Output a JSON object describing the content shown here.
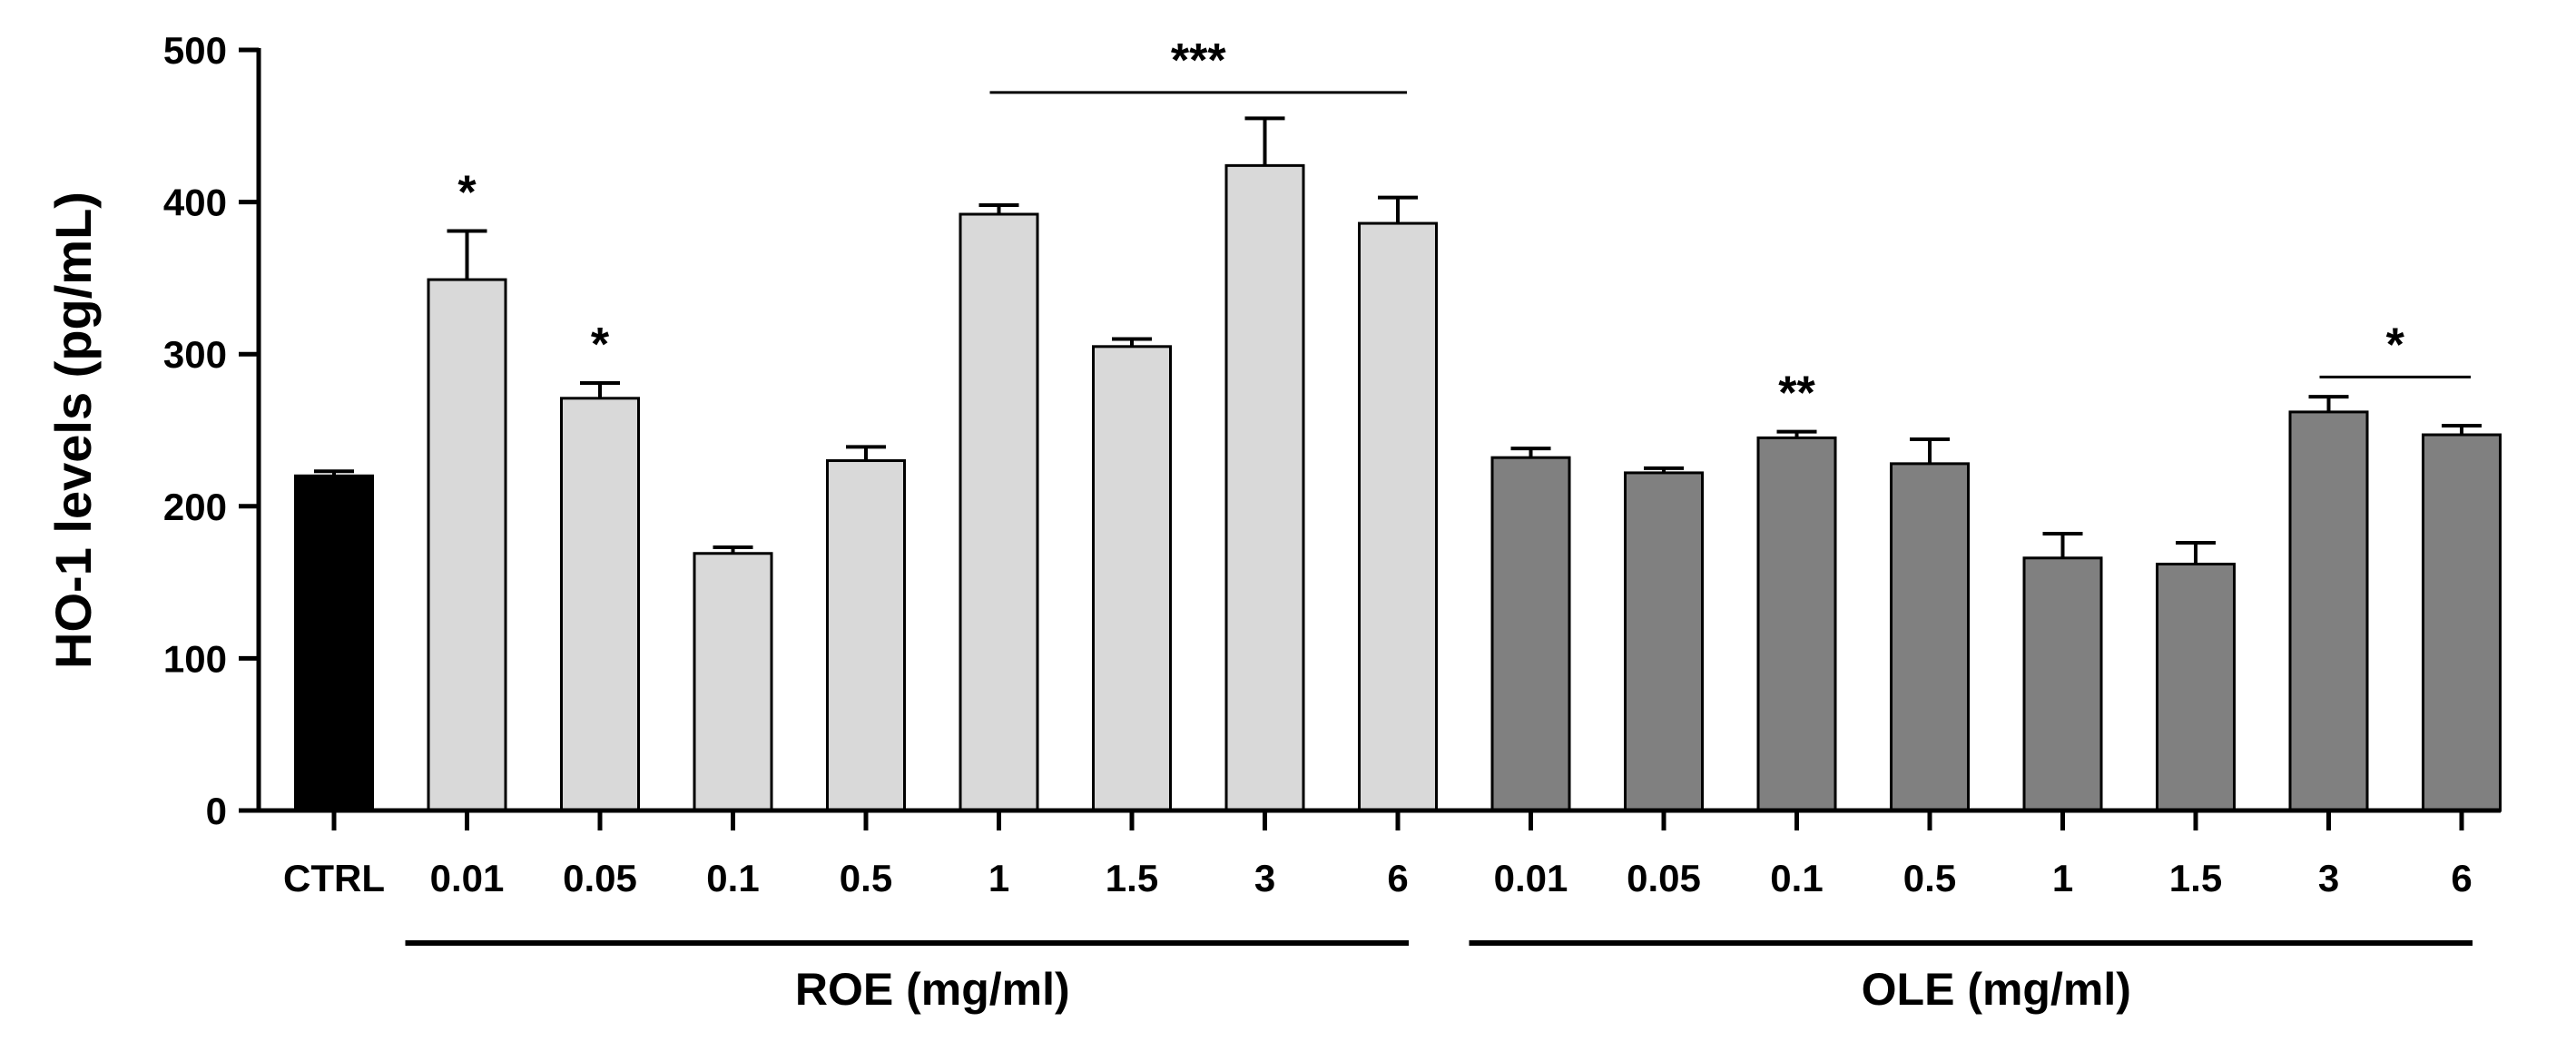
{
  "chart_data": {
    "type": "bar",
    "ylabel": "HO-1 levels (pg/mL)",
    "xlabel": "",
    "ylim": [
      0,
      500
    ],
    "yticks": [
      0,
      100,
      200,
      300,
      400,
      500
    ],
    "grid": false,
    "categories": [
      "CTRL",
      "0.01",
      "0.05",
      "0.1",
      "0.5",
      "1",
      "1.5",
      "3",
      "6",
      "0.01",
      "0.05",
      "0.1",
      "0.5",
      "1",
      "1.5",
      "3",
      "6"
    ],
    "values": [
      220,
      349,
      271,
      169,
      230,
      392,
      305,
      424,
      386,
      232,
      222,
      245,
      228,
      166,
      162,
      262,
      247
    ],
    "errors": [
      3,
      32,
      10,
      4,
      9,
      6,
      5,
      31,
      17,
      6,
      3,
      4,
      16,
      16,
      14,
      10,
      6
    ],
    "bar_groups": [
      "ctrl",
      "roe",
      "roe",
      "roe",
      "roe",
      "roe",
      "roe",
      "roe",
      "roe",
      "ole",
      "ole",
      "ole",
      "ole",
      "ole",
      "ole",
      "ole",
      "ole"
    ],
    "colors": {
      "ctrl": "#000000",
      "roe": "#d9d9d9",
      "ole": "#808080",
      "outline": "#000000"
    },
    "groups": [
      {
        "label": "ROE (mg/ml)",
        "from": 1,
        "to": 8
      },
      {
        "label": "OLE (mg/ml)",
        "from": 9,
        "to": 16
      }
    ],
    "significance_single": [
      {
        "index": 1,
        "label": "*"
      },
      {
        "index": 2,
        "label": "*"
      },
      {
        "index": 11,
        "label": "**"
      }
    ],
    "significance_brackets": [
      {
        "from": 5,
        "to": 8,
        "label": "***",
        "y": 472
      },
      {
        "from": 15,
        "to": 16,
        "label": "*",
        "y": 285
      }
    ]
  }
}
